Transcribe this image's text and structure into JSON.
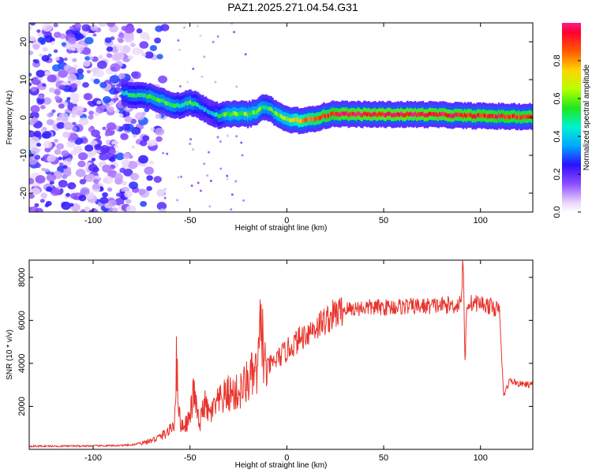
{
  "title": "PAZ1.2025.271.04.54.G31",
  "chart_data": [
    {
      "type": "heatmap",
      "xlabel": "Height of straight line (km)",
      "ylabel": "Frequency (Hz)",
      "xlim": [
        -133,
        127
      ],
      "ylim": [
        -25,
        25
      ],
      "xticks": [
        -100,
        -50,
        0,
        50,
        100
      ],
      "yticks": [
        -20,
        -10,
        0,
        10,
        20
      ],
      "xtick_labels": [
        "-100",
        "-50",
        "0",
        "50",
        "100"
      ],
      "ytick_labels": [
        "-20",
        "-10",
        "0",
        "10",
        "20"
      ],
      "colorbar": {
        "label": "Normalized spectral amplitude",
        "range": [
          0,
          1
        ],
        "ticks": [
          0.0,
          0.2,
          0.4,
          0.6,
          0.8
        ],
        "tick_labels": [
          "0.0",
          "0.2",
          "0.4",
          "0.6",
          "0.8"
        ]
      },
      "ridge": {
        "x": [
          -85,
          -80,
          -75,
          -70,
          -65,
          -60,
          -55,
          -50,
          -45,
          -40,
          -35,
          -30,
          -25,
          -20,
          -15,
          -12,
          -8,
          -5,
          0,
          5,
          10,
          15,
          20,
          25,
          30,
          40,
          50,
          60,
          70,
          80,
          90,
          100,
          110,
          120,
          127
        ],
        "freq": [
          6.5,
          6.0,
          5.8,
          5.5,
          4.5,
          3.5,
          3.0,
          4.0,
          3.0,
          1.5,
          0.5,
          0.8,
          1.0,
          0.8,
          1.5,
          3.0,
          2.0,
          0.8,
          -0.5,
          -0.8,
          -0.8,
          -0.2,
          0.5,
          1.0,
          0.9,
          0.8,
          0.8,
          0.8,
          0.8,
          0.7,
          0.5,
          0.4,
          0.3,
          0.2,
          0.2
        ],
        "amp": [
          0.45,
          0.5,
          0.5,
          0.55,
          0.55,
          0.55,
          0.5,
          0.55,
          0.45,
          0.4,
          0.5,
          0.6,
          0.6,
          0.6,
          0.6,
          0.55,
          0.55,
          0.6,
          0.65,
          0.75,
          0.8,
          0.85,
          0.9,
          0.92,
          0.95,
          0.96,
          0.97,
          0.97,
          0.96,
          0.95,
          0.94,
          0.93,
          0.92,
          0.9,
          0.9
        ]
      },
      "noise_region_x": [
        -133,
        -65
      ]
    },
    {
      "type": "line",
      "xlabel": "Height of straight line (km)",
      "ylabel": "SNR (10 * v/v)",
      "xlim": [
        -133,
        127
      ],
      "ylim": [
        0,
        8800
      ],
      "xticks": [
        -100,
        -50,
        0,
        50,
        100
      ],
      "yticks": [
        2000,
        4000,
        6000,
        8000
      ],
      "xtick_labels": [
        "-100",
        "-50",
        "0",
        "50",
        "100"
      ],
      "ytick_labels": [
        "2000",
        "4000",
        "6000",
        "8000"
      ],
      "series": [
        {
          "name": "SNR",
          "color": "#e8342c",
          "x": [
            -133,
            -120,
            -100,
            -90,
            -80,
            -75,
            -70,
            -65,
            -60,
            -58,
            -57,
            -55,
            -52,
            -50,
            -48,
            -45,
            -43,
            -40,
            -35,
            -30,
            -25,
            -20,
            -15,
            -13,
            -12,
            -10,
            -5,
            0,
            5,
            10,
            15,
            20,
            25,
            30,
            35,
            40,
            50,
            60,
            70,
            80,
            88,
            90,
            91,
            92,
            93,
            95,
            100,
            105,
            109,
            110,
            111,
            112,
            115,
            120,
            127
          ],
          "values": [
            150,
            150,
            160,
            170,
            200,
            300,
            400,
            600,
            900,
            1300,
            4000,
            1100,
            1200,
            1500,
            2700,
            1000,
            2200,
            1600,
            2200,
            2600,
            2600,
            3200,
            3600,
            6400,
            4000,
            3800,
            4200,
            4600,
            5000,
            5400,
            5700,
            6000,
            6300,
            6500,
            6550,
            6600,
            6600,
            6650,
            6650,
            6700,
            6700,
            7000,
            8800,
            4000,
            6800,
            6800,
            6800,
            6650,
            6500,
            6300,
            4000,
            2500,
            3200,
            3050,
            3000
          ]
        }
      ]
    }
  ]
}
